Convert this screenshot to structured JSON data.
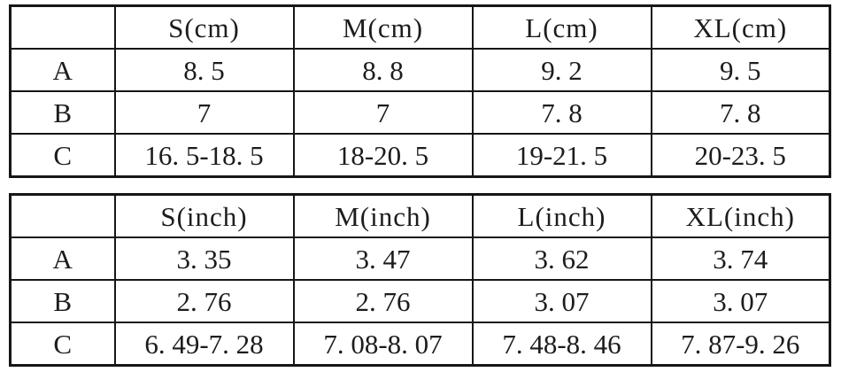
{
  "page": {
    "background": "#ffffff",
    "text_color": "#1c1c1c",
    "border_color": "#161616"
  },
  "tables": [
    {
      "name": "size-chart-cm",
      "unit": "cm",
      "columns": [
        "",
        "S(cm)",
        "M(cm)",
        "L(cm)",
        "XL(cm)"
      ],
      "rows": [
        {
          "label": "A",
          "cells": [
            "8. 5",
            "8. 8",
            "9. 2",
            "9. 5"
          ]
        },
        {
          "label": "B",
          "cells": [
            "7",
            "7",
            "7. 8",
            "7. 8"
          ]
        },
        {
          "label": "C",
          "cells": [
            "16. 5-18. 5",
            "18-20. 5",
            "19-21. 5",
            "20-23. 5"
          ]
        }
      ]
    },
    {
      "name": "size-chart-inch",
      "unit": "inch",
      "columns": [
        "",
        "S(inch)",
        "M(inch)",
        "L(inch)",
        "XL(inch)"
      ],
      "rows": [
        {
          "label": "A",
          "cells": [
            "3. 35",
            "3. 47",
            "3. 62",
            "3. 74"
          ]
        },
        {
          "label": "B",
          "cells": [
            "2. 76",
            "2. 76",
            "3. 07",
            "3. 07"
          ]
        },
        {
          "label": "C",
          "cells": [
            "6. 49-7. 28",
            "7. 08-8. 07",
            "7. 48-8. 46",
            "7. 87-9. 26"
          ]
        }
      ]
    }
  ],
  "chart_data": [
    {
      "type": "table",
      "columns": [
        "",
        "S(cm)",
        "M(cm)",
        "L(cm)",
        "XL(cm)"
      ],
      "rows": [
        [
          "A",
          "8.5",
          "8.8",
          "9.2",
          "9.5"
        ],
        [
          "B",
          "7",
          "7",
          "7.8",
          "7.8"
        ],
        [
          "C",
          "16.5-18.5",
          "18-20.5",
          "19-21.5",
          "20-23.5"
        ]
      ]
    },
    {
      "type": "table",
      "columns": [
        "",
        "S(inch)",
        "M(inch)",
        "L(inch)",
        "XL(inch)"
      ],
      "rows": [
        [
          "A",
          "3.35",
          "3.47",
          "3.62",
          "3.74"
        ],
        [
          "B",
          "2.76",
          "2.76",
          "3.07",
          "3.07"
        ],
        [
          "C",
          "6.49-7.28",
          "7.08-8.07",
          "7.48-8.46",
          "7.87-9.26"
        ]
      ]
    }
  ]
}
